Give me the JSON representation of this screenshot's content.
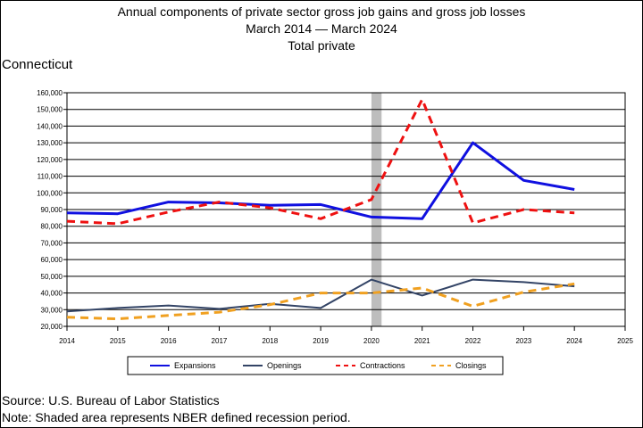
{
  "title_lines": [
    "Annual components of private sector gross job gains and gross job losses",
    "March 2014 — March 2024",
    "Total private"
  ],
  "state_label": "Connecticut",
  "footer": {
    "source": "Source: U.S. Bureau of Labor Statistics",
    "note": "Note: Shaded area represents NBER defined recession period."
  },
  "chart_data": {
    "type": "line",
    "title": "Annual components of private sector gross job gains and gross job losses",
    "xlabel": "",
    "ylabel": "",
    "xlim": [
      2014,
      2025
    ],
    "ylim": [
      20000,
      160000
    ],
    "x_ticks": [
      "2014",
      "2015",
      "2016",
      "2017",
      "2018",
      "2019",
      "2020",
      "2021",
      "2022",
      "2023",
      "2024",
      "2025"
    ],
    "y_ticks": [
      "20,000",
      "30,000",
      "40,000",
      "50,000",
      "60,000",
      "70,000",
      "80,000",
      "90,000",
      "100,000",
      "110,000",
      "120,000",
      "130,000",
      "140,000",
      "150,000",
      "160,000"
    ],
    "grid": true,
    "recession_shading": [
      2020,
      2020.2
    ],
    "legend_position": "bottom",
    "x": [
      2014,
      2015,
      2016,
      2017,
      2018,
      2019,
      2020,
      2021,
      2022,
      2023,
      2024
    ],
    "series": [
      {
        "name": "Expansions",
        "color": "#1010e0",
        "style": "solid",
        "width": "thick",
        "values": [
          88000,
          87500,
          94500,
          94000,
          92500,
          93000,
          85500,
          84500,
          130000,
          107500,
          102000
        ]
      },
      {
        "name": "Openings",
        "color": "#334466",
        "style": "solid",
        "width": "medium",
        "values": [
          29000,
          31000,
          32500,
          30500,
          33500,
          31000,
          48000,
          38500,
          48000,
          46500,
          44000
        ]
      },
      {
        "name": "Contractions",
        "color": "#ee1111",
        "style": "dashed",
        "width": "thick",
        "values": [
          83000,
          81500,
          88500,
          94500,
          91000,
          84500,
          96000,
          156000,
          82000,
          90000,
          88000
        ]
      },
      {
        "name": "Closings",
        "color": "#f0a020",
        "style": "dashed",
        "width": "thick",
        "values": [
          25500,
          24500,
          26500,
          28500,
          33000,
          40000,
          40000,
          43000,
          32000,
          40500,
          45500
        ]
      }
    ]
  }
}
